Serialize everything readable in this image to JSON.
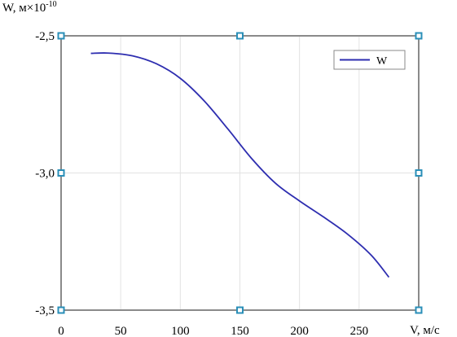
{
  "chart_data": {
    "type": "line",
    "ylabel": "W, м×10",
    "ylabel_exponent": "-10",
    "xlabel": "V, м/с",
    "xlim": [
      0,
      300
    ],
    "ylim": [
      -3.5,
      -2.5
    ],
    "x_ticks": [
      0,
      50,
      100,
      150,
      200,
      250
    ],
    "x_tick_labels": [
      "0",
      "50",
      "100",
      "150",
      "200",
      "250"
    ],
    "y_ticks": [
      -2.5,
      -3.0,
      -3.5
    ],
    "y_tick_labels": [
      "-2,5",
      "-3,0",
      "-3,5"
    ],
    "grid": true,
    "legend_position": "top-right",
    "series": [
      {
        "name": "W",
        "color": "#2e2eb0",
        "x": [
          25,
          40,
          60,
          80,
          100,
          120,
          140,
          160,
          180,
          200,
          220,
          240,
          260,
          275
        ],
        "y": [
          -2.564,
          -2.563,
          -2.573,
          -2.602,
          -2.655,
          -2.737,
          -2.84,
          -2.948,
          -3.038,
          -3.102,
          -3.16,
          -3.222,
          -3.299,
          -3.38
        ]
      }
    ]
  }
}
